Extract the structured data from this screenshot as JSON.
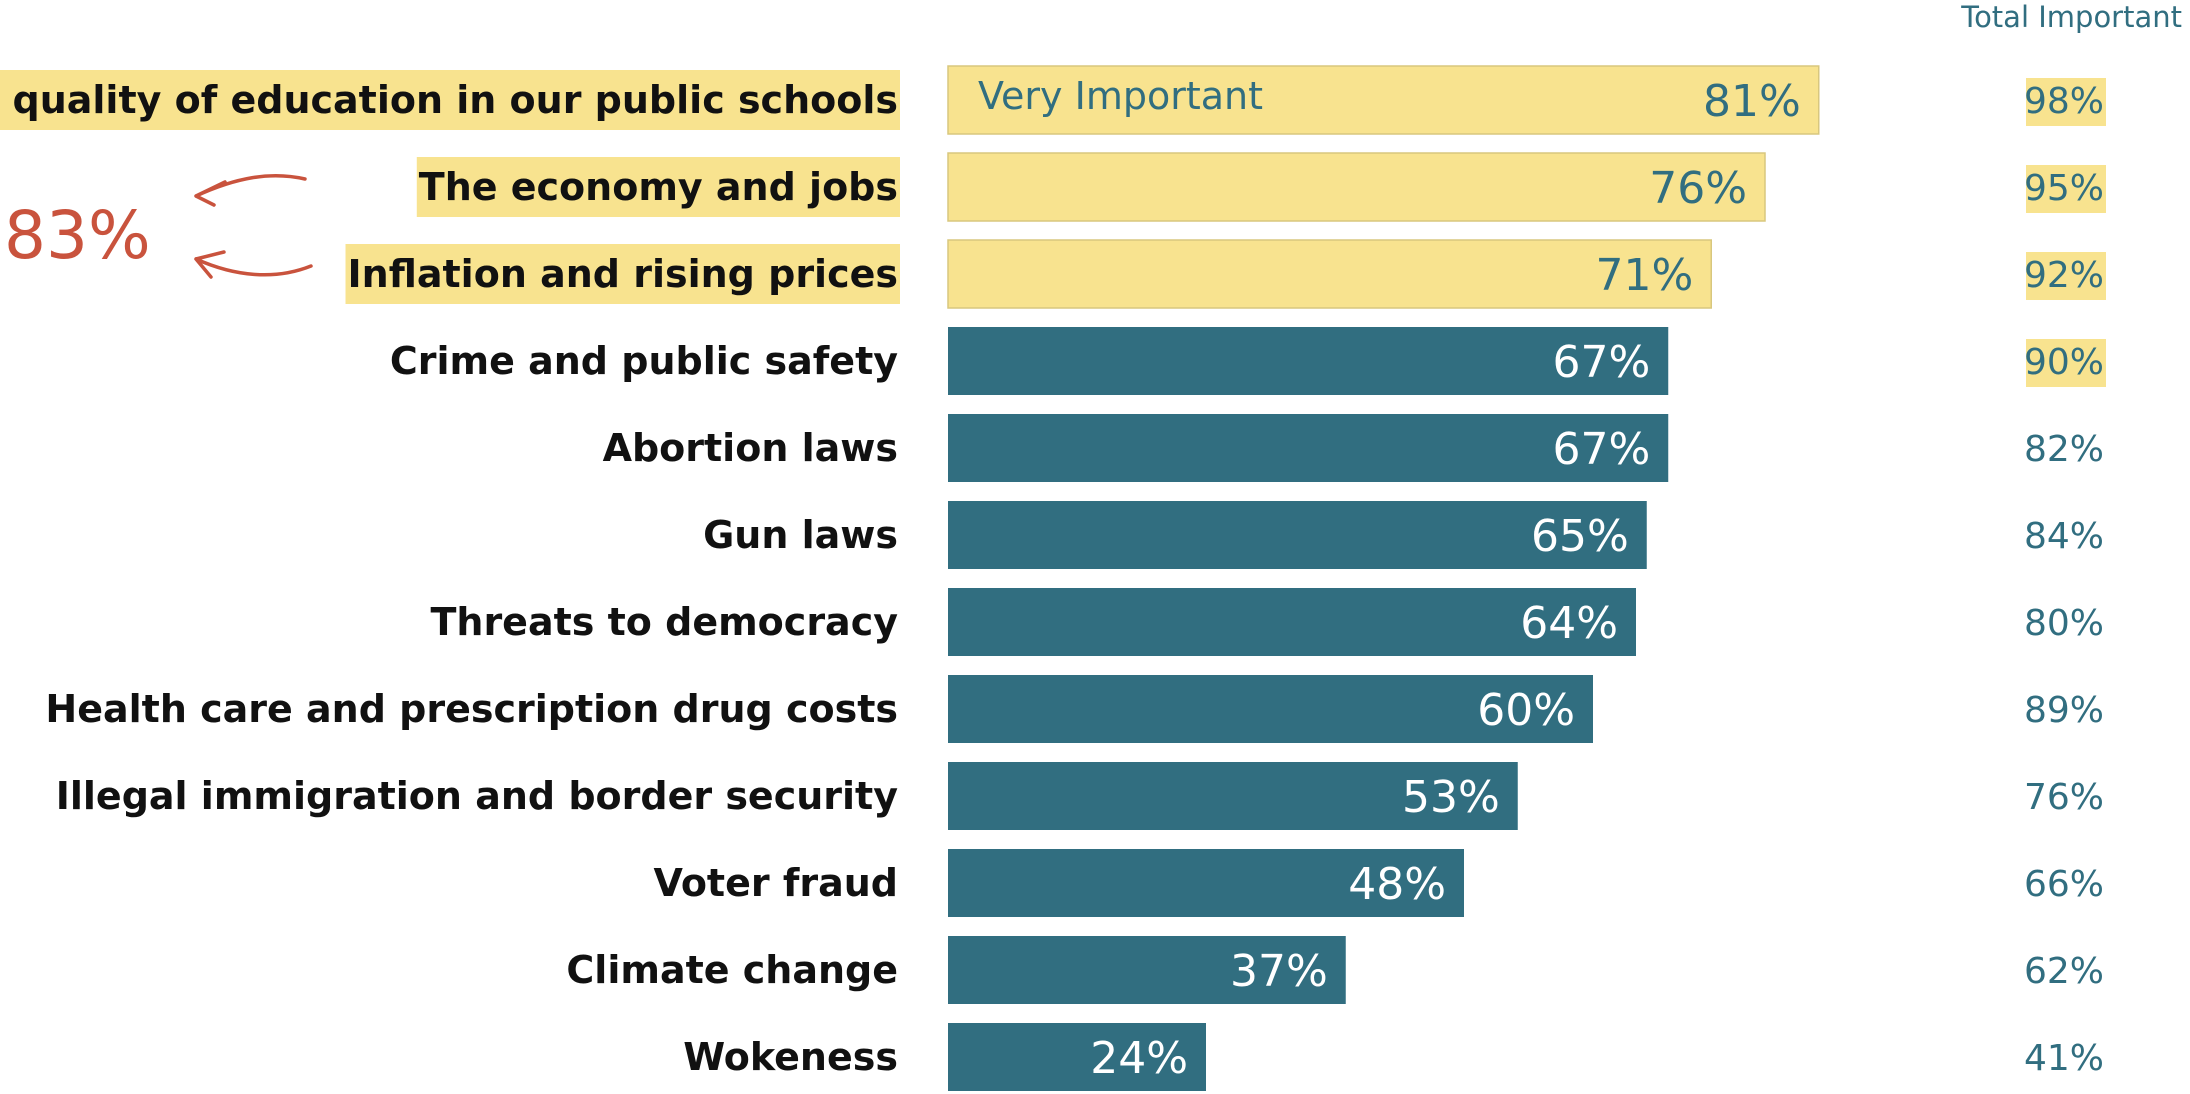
{
  "chart_data": {
    "type": "bar",
    "orientation": "horizontal",
    "categories": [
      "The quality of education in our public schools",
      "The economy and jobs",
      "Inflation and rising prices",
      "Crime and public safety",
      "Abortion laws",
      "Gun laws",
      "Threats to democracy",
      "Health care and prescription drug costs",
      "Illegal immigration and border security",
      "Voter fraud",
      "Climate change",
      "Wokeness"
    ],
    "series": [
      {
        "name": "Very Important",
        "values": [
          81,
          76,
          71,
          67,
          67,
          65,
          64,
          60,
          53,
          48,
          37,
          24
        ],
        "value_labels": [
          "81%",
          "76%",
          "71%",
          "67%",
          "67%",
          "65%",
          "64%",
          "60%",
          "53%",
          "48%",
          "37%",
          "24%"
        ]
      },
      {
        "name": "Total Important",
        "values": [
          98,
          95,
          92,
          90,
          82,
          84,
          80,
          89,
          76,
          66,
          62,
          41
        ],
        "value_labels": [
          "98%",
          "95%",
          "92%",
          "90%",
          "82%",
          "84%",
          "80%",
          "89%",
          "76%",
          "66%",
          "62%",
          "41%"
        ]
      }
    ],
    "highlighted_bars": [
      0,
      1,
      2
    ],
    "highlighted_totals": [
      0,
      1,
      2,
      3
    ],
    "xlim": [
      0,
      100
    ],
    "annotation": {
      "text": "83%",
      "targets": [
        1,
        2
      ]
    },
    "colors": {
      "bar": "#316E80",
      "highlight": "#F8E38F",
      "highlight_border": "#D8C77E",
      "text_dark": "#111111",
      "text_teal": "#316E80",
      "annotation": "#C9533D"
    }
  }
}
